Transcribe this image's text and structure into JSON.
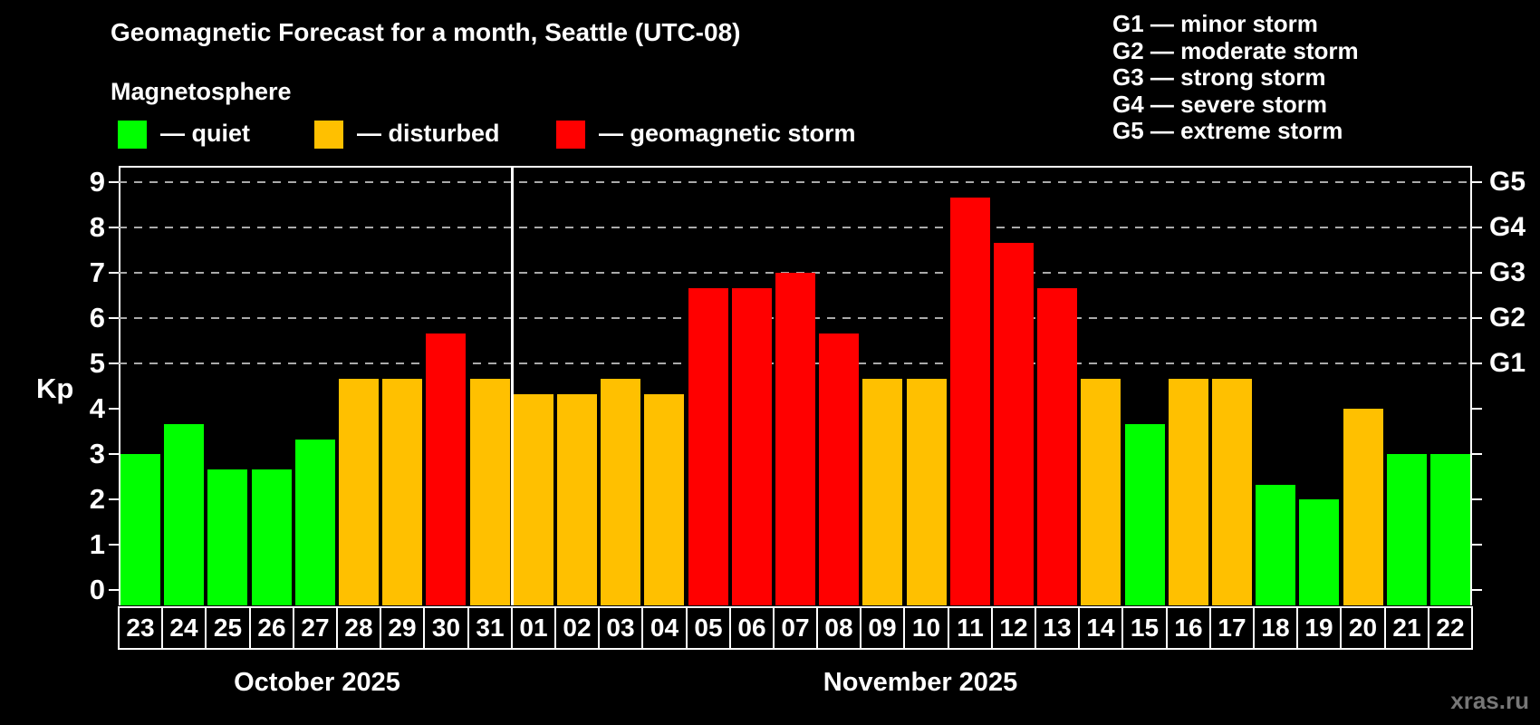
{
  "title": "Geomagnetic Forecast for a month, Seattle (UTC-08)",
  "subtitle": "Magnetosphere",
  "legend": {
    "quiet_label": "— quiet",
    "disturbed_label": "— disturbed",
    "storm_label": "— geomagnetic storm"
  },
  "storm_scale_legend": [
    "G1 — minor storm",
    "G2 — moderate storm",
    "G3 — strong storm",
    "G4 — severe storm",
    "G5 — extreme storm"
  ],
  "ylabel": "Kp",
  "watermark": "xras.ru",
  "colors": {
    "quiet": "#00ff00",
    "disturbed": "#ffc000",
    "storm": "#ff0000",
    "axis": "#ffffff",
    "gridline": "#aaaaaa",
    "background": "#000000",
    "watermark": "#777777"
  },
  "chart_data": {
    "type": "bar",
    "title": "Geomagnetic Forecast for a month, Seattle (UTC-08)",
    "xlabel": "",
    "ylabel": "Kp",
    "ylim": [
      0,
      9
    ],
    "yticks": [
      0,
      1,
      2,
      3,
      4,
      5,
      6,
      7,
      8,
      9
    ],
    "grid": "dashed horizontal at Kp 5-9 only",
    "legend_position": "top-left swatches; storm scale top-right",
    "g_levels": [
      {
        "label": "G1",
        "kp": 5
      },
      {
        "label": "G2",
        "kp": 6
      },
      {
        "label": "G3",
        "kp": 7
      },
      {
        "label": "G4",
        "kp": 8
      },
      {
        "label": "G5",
        "kp": 9
      }
    ],
    "months": [
      {
        "label": "October 2025",
        "start_index": 0,
        "day_count": 9,
        "label_center_x": 350
      },
      {
        "label": "November 2025",
        "start_index": 9,
        "day_count": 22,
        "label_center_x": 1016
      }
    ],
    "categories": [
      "23",
      "24",
      "25",
      "26",
      "27",
      "28",
      "29",
      "30",
      "31",
      "01",
      "02",
      "03",
      "04",
      "05",
      "06",
      "07",
      "08",
      "09",
      "10",
      "11",
      "12",
      "13",
      "14",
      "15",
      "16",
      "17",
      "18",
      "19",
      "20",
      "21",
      "22"
    ],
    "values": [
      3.0,
      3.67,
      2.67,
      2.67,
      3.33,
      4.67,
      4.67,
      5.67,
      4.67,
      4.33,
      4.33,
      4.67,
      4.33,
      6.67,
      6.67,
      7.0,
      5.67,
      4.67,
      4.67,
      8.67,
      7.67,
      6.67,
      4.67,
      3.67,
      4.67,
      4.67,
      2.33,
      2.0,
      4.0,
      3.0,
      3.0
    ],
    "statuses": [
      "quiet",
      "quiet",
      "quiet",
      "quiet",
      "quiet",
      "disturbed",
      "disturbed",
      "storm",
      "disturbed",
      "disturbed",
      "disturbed",
      "disturbed",
      "disturbed",
      "storm",
      "storm",
      "storm",
      "storm",
      "disturbed",
      "disturbed",
      "storm",
      "storm",
      "storm",
      "disturbed",
      "quiet",
      "disturbed",
      "disturbed",
      "quiet",
      "quiet",
      "disturbed",
      "quiet",
      "quiet"
    ]
  }
}
